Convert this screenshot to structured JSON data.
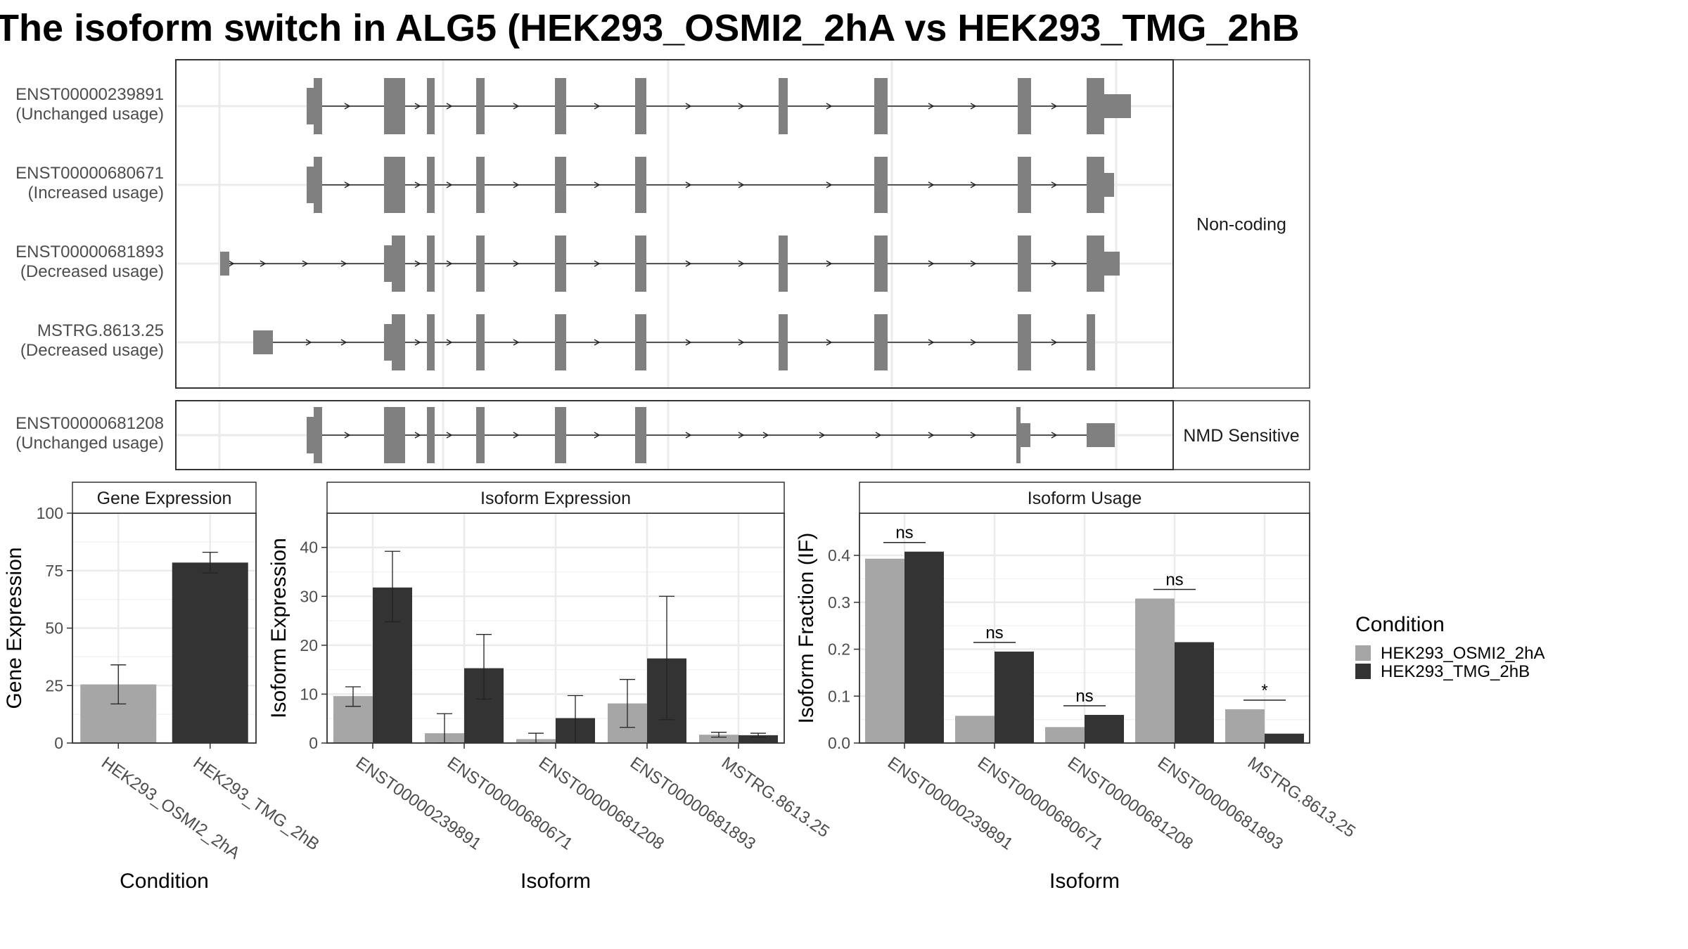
{
  "title": "The isoform switch in ALG5 (HEK293_OSMI2_2hA vs HEK293_TMG_2hB",
  "colors": {
    "osmi": "#a6a6a6",
    "tmg": "#333333",
    "exon": "#808080",
    "grid": "#ebebeb",
    "strip_bg": "#ffffff",
    "panel_border": "#333333"
  },
  "structure": {
    "groups": [
      {
        "label": "Non-coding",
        "transcripts": [
          {
            "id": "ENST00000239891",
            "usage": "(Unchanged usage)"
          },
          {
            "id": "ENST00000680671",
            "usage": "(Increased usage)"
          },
          {
            "id": "ENST00000681893",
            "usage": "(Decreased usage)"
          },
          {
            "id": "MSTRG.8613.25",
            "usage": "(Decreased usage)"
          }
        ]
      },
      {
        "label": "NMD Sensitive",
        "transcripts": [
          {
            "id": "ENST00000681208",
            "usage": "(Unchanged usage)"
          }
        ]
      }
    ]
  },
  "chart_data": [
    {
      "type": "bar",
      "title": "Gene Expression",
      "xlabel": "Condition",
      "ylabel": "Gene Expression",
      "ylim": [
        0,
        100
      ],
      "yticks": [
        0,
        25,
        50,
        75,
        100
      ],
      "categories": [
        "HEK293_OSMI2_2hA",
        "HEK293_TMG_2hB"
      ],
      "series": [
        {
          "values": [
            25.5,
            78.5
          ],
          "err_low": [
            17,
            74
          ],
          "err_high": [
            34,
            83
          ]
        }
      ],
      "grid": true
    },
    {
      "type": "bar",
      "title": "Isoform Expression",
      "xlabel": "Isoform",
      "ylabel": "Isoform Expression",
      "ylim": [
        0,
        47
      ],
      "yticks": [
        0,
        10,
        20,
        30,
        40
      ],
      "categories": [
        "ENST00000239891",
        "ENST00000680671",
        "ENST00000681208",
        "ENST00000681893",
        "MSTRG.8613.25"
      ],
      "series": [
        {
          "name": "HEK293_OSMI2_2hA",
          "values": [
            9.6,
            2.0,
            0.8,
            8.1,
            1.7
          ],
          "err_low": [
            7.5,
            0,
            0,
            3.2,
            1.2
          ],
          "err_high": [
            11.5,
            6.0,
            2.0,
            13.0,
            2.2
          ]
        },
        {
          "name": "HEK293_TMG_2hB",
          "values": [
            31.8,
            15.3,
            5.1,
            17.3,
            1.6
          ],
          "err_low": [
            24.8,
            9.0,
            0,
            4.8,
            1.2
          ],
          "err_high": [
            39.2,
            22.2,
            9.7,
            30.0,
            2.0
          ]
        }
      ],
      "grid": true
    },
    {
      "type": "bar",
      "title": "Isoform Usage",
      "xlabel": "Isoform",
      "ylabel": "Isoform Fraction (IF)",
      "ylim": [
        0,
        0.49
      ],
      "yticks": [
        0.0,
        0.1,
        0.2,
        0.3,
        0.4
      ],
      "ytick_labels": [
        "0.0",
        "0.1",
        "0.2",
        "0.3",
        "0.4"
      ],
      "categories": [
        "ENST00000239891",
        "ENST00000680671",
        "ENST00000681208",
        "ENST00000681893",
        "MSTRG.8613.25"
      ],
      "series": [
        {
          "name": "HEK293_OSMI2_2hA",
          "values": [
            0.393,
            0.058,
            0.034,
            0.308,
            0.072
          ]
        },
        {
          "name": "HEK293_TMG_2hB",
          "values": [
            0.408,
            0.195,
            0.06,
            0.215,
            0.02
          ]
        }
      ],
      "significance": [
        "ns",
        "ns",
        "ns",
        "ns",
        "*"
      ],
      "legend": {
        "title": "Condition",
        "entries": [
          "HEK293_OSMI2_2hA",
          "HEK293_TMG_2hB"
        ],
        "placement": "right"
      },
      "grid": true
    }
  ]
}
